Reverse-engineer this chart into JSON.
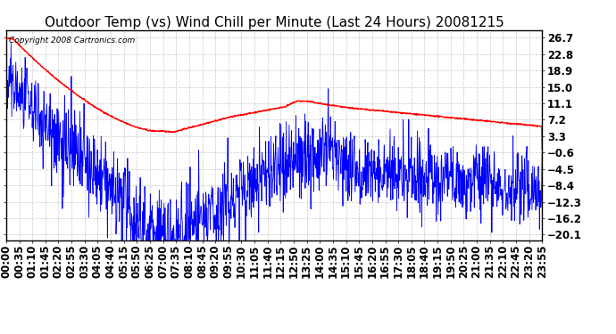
{
  "title": "Outdoor Temp (vs) Wind Chill per Minute (Last 24 Hours) 20081215",
  "copyright_text": "Copyright 2008 Cartronics.com",
  "y_ticks": [
    26.7,
    22.8,
    18.9,
    15.0,
    11.1,
    7.2,
    3.3,
    -0.6,
    -4.5,
    -8.4,
    -12.3,
    -16.2,
    -20.1
  ],
  "x_tick_labels": [
    "00:00",
    "00:35",
    "01:10",
    "01:45",
    "02:20",
    "02:55",
    "03:30",
    "04:05",
    "04:40",
    "05:15",
    "05:50",
    "06:25",
    "07:00",
    "07:35",
    "08:10",
    "08:45",
    "09:20",
    "09:55",
    "10:30",
    "11:05",
    "11:40",
    "12:15",
    "12:50",
    "13:25",
    "14:00",
    "14:35",
    "15:10",
    "15:45",
    "16:20",
    "16:55",
    "17:30",
    "18:05",
    "18:40",
    "19:15",
    "19:50",
    "20:25",
    "21:00",
    "21:35",
    "22:10",
    "22:45",
    "23:20",
    "23:55"
  ],
  "background_color": "#ffffff",
  "plot_bg_color": "#ffffff",
  "grid_color": "#c8c8c8",
  "blue_line_color": "#0000ff",
  "red_line_color": "#ff0000",
  "title_fontsize": 11,
  "tick_fontsize": 8.5,
  "copyright_fontsize": 6.5,
  "ylim_min": -21.5,
  "ylim_max": 28.5
}
